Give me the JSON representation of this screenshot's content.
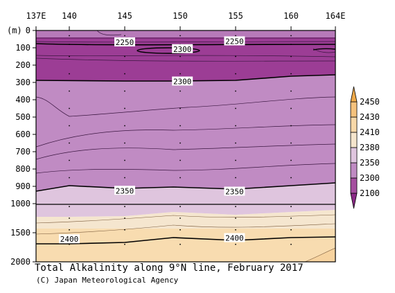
{
  "chart_data": {
    "type": "contour",
    "title": "Total Alkalinity along 9°N line, February 2017",
    "credit": "(C) Japan Meteorological Agency",
    "x_ticks": [
      "137E",
      "140",
      "145",
      "150",
      "155",
      "160",
      "164E"
    ],
    "x_tick_values": [
      137,
      140,
      145,
      150,
      155,
      160,
      164
    ],
    "xlim": [
      137,
      164
    ],
    "y_unit": "(m)",
    "y_ticks_upper": [
      "0",
      "100",
      "200",
      "300",
      "400",
      "500",
      "600",
      "700",
      "800",
      "900",
      "1000"
    ],
    "y_tick_values_upper": [
      0,
      100,
      200,
      300,
      400,
      500,
      600,
      700,
      800,
      900,
      1000
    ],
    "y_ticks_lower": [
      "1500",
      "2000"
    ],
    "y_tick_values_lower": [
      1500,
      2000
    ],
    "ylim": [
      0,
      2000
    ],
    "colorbar": {
      "levels": [
        "2100",
        "2300",
        "2350",
        "2380",
        "2410",
        "2430",
        "2450"
      ],
      "colors": [
        "#8b2a86",
        "#a54f9f",
        "#c08bc3",
        "#dfc5de",
        "#f5e5cc",
        "#f8d8a8",
        "#f5c27d",
        "#eea94a"
      ]
    },
    "contour_labels": [
      {
        "text": "2250",
        "lon": 145.0,
        "depth": 68
      },
      {
        "text": "2250",
        "lon": 154.9,
        "depth": 62
      },
      {
        "text": "2300",
        "lon": 150.2,
        "depth": 107
      },
      {
        "text": "2300",
        "lon": 150.2,
        "depth": 294
      },
      {
        "text": "2350",
        "lon": 145.0,
        "depth": 925
      },
      {
        "text": "2350",
        "lon": 154.9,
        "depth": 930
      },
      {
        "text": "2400",
        "lon": 140.0,
        "depth": 1610
      },
      {
        "text": "2400",
        "lon": 154.9,
        "depth": 1590
      }
    ]
  }
}
